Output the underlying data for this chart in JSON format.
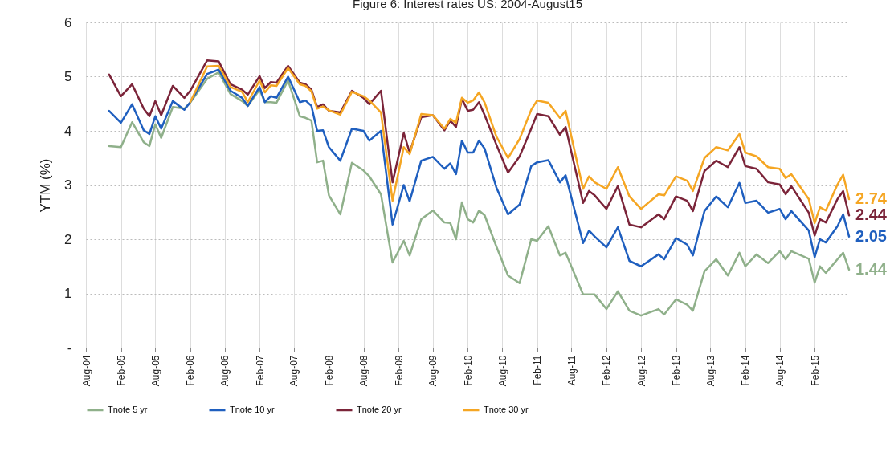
{
  "chart_data": {
    "type": "line",
    "title": "Figure 6: Interest rates US: 2004-August15",
    "ylabel": "YTM (%)",
    "x": [
      "2004-12",
      "2005-02",
      "2005-04",
      "2005-06",
      "2005-07",
      "2005-08",
      "2005-09",
      "2005-11",
      "2006-01",
      "2006-02",
      "2006-05",
      "2006-07",
      "2006-09",
      "2006-11",
      "2006-12",
      "2007-02",
      "2007-03",
      "2007-04",
      "2007-05",
      "2007-07",
      "2007-09",
      "2007-10",
      "2007-11",
      "2007-12",
      "2008-01",
      "2008-02",
      "2008-04",
      "2008-06",
      "2008-08",
      "2008-09",
      "2008-11",
      "2009-01",
      "2009-03",
      "2009-04",
      "2009-06",
      "2009-08",
      "2009-10",
      "2009-11",
      "2009-12",
      "2010-01",
      "2010-02",
      "2010-03",
      "2010-04",
      "2010-05",
      "2010-07",
      "2010-09",
      "2010-11",
      "2011-01",
      "2011-02",
      "2011-04",
      "2011-06",
      "2011-07",
      "2011-10",
      "2011-11",
      "2011-12",
      "2012-02",
      "2012-04",
      "2012-06",
      "2012-08",
      "2012-11",
      "2012-12",
      "2013-02",
      "2013-04",
      "2013-05",
      "2013-07",
      "2013-09",
      "2013-11",
      "2014-01",
      "2014-02",
      "2014-04",
      "2014-06",
      "2014-08",
      "2014-09",
      "2014-10",
      "2015-01",
      "2015-02",
      "2015-03",
      "2015-04",
      "2015-06",
      "2015-07",
      "2015-08"
    ],
    "series": [
      {
        "name": "Tnote 5 yr",
        "color": "#8fb08a",
        "values": [
          3.72,
          3.7,
          4.16,
          3.79,
          3.72,
          4.12,
          3.87,
          4.44,
          4.41,
          4.52,
          4.96,
          5.08,
          4.68,
          4.55,
          4.46,
          4.76,
          4.53,
          4.53,
          4.52,
          4.93,
          4.27,
          4.24,
          4.19,
          3.42,
          3.45,
          2.81,
          2.46,
          3.41,
          3.27,
          3.16,
          2.83,
          1.57,
          1.97,
          1.7,
          2.37,
          2.53,
          2.31,
          2.3,
          2.0,
          2.68,
          2.37,
          2.31,
          2.53,
          2.44,
          1.87,
          1.33,
          1.19,
          2.0,
          1.97,
          2.24,
          1.7,
          1.75,
          0.98,
          0.98,
          0.98,
          0.71,
          1.04,
          0.68,
          0.59,
          0.71,
          0.61,
          0.89,
          0.79,
          0.68,
          1.41,
          1.63,
          1.33,
          1.75,
          1.5,
          1.72,
          1.56,
          1.78,
          1.63,
          1.78,
          1.64,
          1.2,
          1.5,
          1.38,
          1.63,
          1.75,
          1.44
        ],
        "value_labels": [
          null,
          null,
          null,
          null,
          null,
          null,
          null,
          null,
          null,
          null,
          null,
          null,
          null,
          null,
          null,
          null,
          null,
          null,
          null,
          null,
          null,
          null,
          null,
          null,
          null,
          null,
          null,
          null,
          null,
          null,
          null,
          null,
          null,
          null,
          null,
          null,
          null,
          null,
          null,
          null,
          null,
          null,
          null,
          null,
          null,
          null,
          null,
          null,
          null,
          null,
          null,
          null,
          null,
          null,
          null,
          null,
          null,
          null,
          null,
          null,
          null,
          null,
          null,
          null,
          null,
          null,
          null,
          null,
          null,
          null,
          null,
          null,
          null,
          null,
          null,
          null,
          null,
          null,
          null,
          null,
          "1.44"
        ]
      },
      {
        "name": "Tnote 10 yr",
        "color": "#1f5fbf",
        "values": [
          4.37,
          4.15,
          4.49,
          4.01,
          3.94,
          4.27,
          4.04,
          4.55,
          4.39,
          4.53,
          5.05,
          5.13,
          4.74,
          4.61,
          4.46,
          4.81,
          4.53,
          4.64,
          4.61,
          5.0,
          4.53,
          4.56,
          4.46,
          4.0,
          4.01,
          3.7,
          3.45,
          4.04,
          4.0,
          3.82,
          4.0,
          2.27,
          3.0,
          2.7,
          3.45,
          3.52,
          3.3,
          3.4,
          3.2,
          3.82,
          3.6,
          3.6,
          3.82,
          3.67,
          2.96,
          2.46,
          2.64,
          3.35,
          3.42,
          3.46,
          3.05,
          3.18,
          1.93,
          2.16,
          2.05,
          1.85,
          2.22,
          1.6,
          1.5,
          1.72,
          1.63,
          2.02,
          1.9,
          1.7,
          2.52,
          2.79,
          2.59,
          3.04,
          2.67,
          2.71,
          2.49,
          2.56,
          2.37,
          2.52,
          2.16,
          1.67,
          2.0,
          1.94,
          2.24,
          2.46,
          2.05
        ],
        "value_labels": [
          null,
          null,
          null,
          null,
          null,
          null,
          null,
          null,
          null,
          null,
          null,
          null,
          null,
          null,
          null,
          null,
          null,
          null,
          null,
          null,
          null,
          null,
          null,
          null,
          null,
          null,
          null,
          null,
          null,
          null,
          null,
          null,
          null,
          null,
          null,
          null,
          null,
          null,
          null,
          null,
          null,
          null,
          null,
          null,
          null,
          null,
          null,
          null,
          null,
          null,
          null,
          null,
          null,
          null,
          null,
          null,
          null,
          null,
          null,
          null,
          null,
          null,
          null,
          null,
          null,
          null,
          null,
          null,
          null,
          null,
          null,
          null,
          null,
          null,
          null,
          null,
          null,
          null,
          null,
          null,
          "2.05"
        ]
      },
      {
        "name": "Tnote 20 yr",
        "color": "#7b2439",
        "values": [
          5.04,
          4.64,
          4.86,
          4.41,
          4.27,
          4.55,
          4.29,
          4.83,
          4.61,
          4.74,
          5.3,
          5.28,
          4.86,
          4.76,
          4.67,
          5.01,
          4.79,
          4.9,
          4.89,
          5.2,
          4.89,
          4.86,
          4.76,
          4.44,
          4.49,
          4.37,
          4.34,
          4.74,
          4.61,
          4.49,
          4.74,
          3.05,
          3.96,
          3.6,
          4.25,
          4.29,
          4.01,
          4.19,
          4.07,
          4.59,
          4.37,
          4.39,
          4.53,
          4.29,
          3.75,
          3.23,
          3.53,
          4.04,
          4.31,
          4.27,
          3.93,
          4.07,
          2.67,
          2.89,
          2.81,
          2.56,
          2.98,
          2.27,
          2.22,
          2.46,
          2.37,
          2.79,
          2.71,
          2.52,
          3.26,
          3.45,
          3.33,
          3.7,
          3.35,
          3.3,
          3.05,
          3.01,
          2.83,
          2.98,
          2.49,
          2.07,
          2.37,
          2.31,
          2.74,
          2.89,
          2.44
        ],
        "value_labels": [
          null,
          null,
          null,
          null,
          null,
          null,
          null,
          null,
          null,
          null,
          null,
          null,
          null,
          null,
          null,
          null,
          null,
          null,
          null,
          null,
          null,
          null,
          null,
          null,
          null,
          null,
          null,
          null,
          null,
          null,
          null,
          null,
          null,
          null,
          null,
          null,
          null,
          null,
          null,
          null,
          null,
          null,
          null,
          null,
          null,
          null,
          null,
          null,
          null,
          null,
          null,
          null,
          null,
          null,
          null,
          null,
          null,
          null,
          null,
          null,
          null,
          null,
          null,
          null,
          null,
          null,
          null,
          null,
          null,
          null,
          null,
          null,
          null,
          null,
          null,
          null,
          null,
          null,
          null,
          null,
          "2.44"
        ]
      },
      {
        "name": "Tnote 30 yr",
        "color": "#f5a623",
        "values": [
          null,
          null,
          null,
          null,
          null,
          null,
          null,
          null,
          null,
          4.53,
          5.19,
          5.2,
          4.81,
          4.72,
          4.53,
          4.93,
          4.71,
          4.84,
          4.83,
          5.16,
          4.86,
          4.83,
          4.73,
          4.41,
          4.45,
          4.38,
          4.3,
          4.72,
          4.64,
          4.56,
          4.34,
          2.71,
          3.7,
          3.57,
          4.31,
          4.29,
          4.04,
          4.22,
          4.15,
          4.61,
          4.52,
          4.56,
          4.71,
          4.52,
          3.9,
          3.5,
          3.85,
          4.39,
          4.56,
          4.52,
          4.24,
          4.37,
          2.93,
          3.16,
          3.05,
          2.93,
          3.33,
          2.79,
          2.56,
          2.83,
          2.81,
          3.16,
          3.08,
          2.89,
          3.5,
          3.7,
          3.64,
          3.94,
          3.6,
          3.53,
          3.33,
          3.3,
          3.13,
          3.2,
          2.74,
          2.3,
          2.59,
          2.53,
          3.01,
          3.19,
          2.74
        ],
        "value_labels": [
          null,
          null,
          null,
          null,
          null,
          null,
          null,
          null,
          null,
          null,
          null,
          null,
          null,
          null,
          null,
          null,
          null,
          null,
          null,
          null,
          null,
          null,
          null,
          null,
          null,
          null,
          null,
          null,
          null,
          null,
          null,
          null,
          null,
          null,
          null,
          null,
          null,
          null,
          null,
          null,
          null,
          null,
          null,
          null,
          null,
          null,
          null,
          null,
          null,
          null,
          null,
          null,
          null,
          null,
          null,
          null,
          null,
          null,
          null,
          null,
          null,
          null,
          null,
          null,
          null,
          null,
          null,
          null,
          null,
          null,
          null,
          null,
          null,
          null,
          null,
          null,
          null,
          null,
          null,
          null,
          "2.74"
        ]
      }
    ],
    "xlim": [
      "2004-08",
      "2015-08"
    ],
    "xticks": [
      {
        "value": "2004-08",
        "label": "Aug-04"
      },
      {
        "value": "2005-02",
        "label": "Feb-05"
      },
      {
        "value": "2005-08",
        "label": "Aug-05"
      },
      {
        "value": "2006-02",
        "label": "Feb-06"
      },
      {
        "value": "2006-08",
        "label": "Aug-06"
      },
      {
        "value": "2007-02",
        "label": "Feb-07"
      },
      {
        "value": "2007-08",
        "label": "Aug-07"
      },
      {
        "value": "2008-02",
        "label": "Feb-08"
      },
      {
        "value": "2008-08",
        "label": "Aug-08"
      },
      {
        "value": "2009-02",
        "label": "Feb-09"
      },
      {
        "value": "2009-08",
        "label": "Aug-09"
      },
      {
        "value": "2010-02",
        "label": "Feb-10"
      },
      {
        "value": "2010-08",
        "label": "Aug-10"
      },
      {
        "value": "2011-02",
        "label": "Feb-11"
      },
      {
        "value": "2011-08",
        "label": "Aug-11"
      },
      {
        "value": "2012-02",
        "label": "Feb-12"
      },
      {
        "value": "2012-08",
        "label": "Aug-12"
      },
      {
        "value": "2013-02",
        "label": "Feb-13"
      },
      {
        "value": "2013-08",
        "label": "Aug-13"
      },
      {
        "value": "2014-02",
        "label": "Feb-14"
      },
      {
        "value": "2014-08",
        "label": "Aug-14"
      },
      {
        "value": "2015-02",
        "label": "Feb-15"
      }
    ],
    "ylim": [
      0,
      6
    ],
    "yticks": [
      {
        "value": 0,
        "label": "-"
      },
      1,
      2,
      3,
      4,
      5,
      6
    ],
    "grid": true,
    "legend": "bottom"
  }
}
